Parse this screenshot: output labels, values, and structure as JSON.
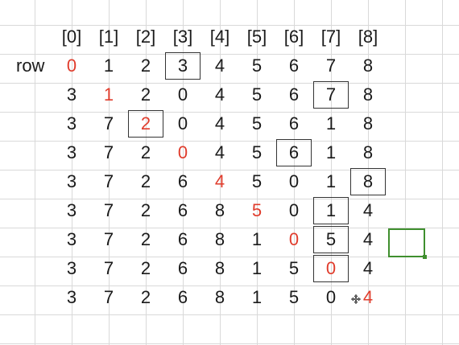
{
  "sheet": {
    "column_headers": [
      "[0]",
      "[1]",
      "[2]",
      "[3]",
      "[4]",
      "[5]",
      "[6]",
      "[7]",
      "[8]"
    ],
    "row_label": "row",
    "rows": [
      [
        "0",
        "1",
        "2",
        "3",
        "4",
        "5",
        "6",
        "7",
        "8"
      ],
      [
        "3",
        "1",
        "2",
        "0",
        "4",
        "5",
        "6",
        "7",
        "8"
      ],
      [
        "3",
        "7",
        "2",
        "0",
        "4",
        "5",
        "6",
        "1",
        "8"
      ],
      [
        "3",
        "7",
        "2",
        "0",
        "4",
        "5",
        "6",
        "1",
        "8"
      ],
      [
        "3",
        "7",
        "2",
        "6",
        "4",
        "5",
        "0",
        "1",
        "8"
      ],
      [
        "3",
        "7",
        "2",
        "6",
        "8",
        "5",
        "0",
        "1",
        "4"
      ],
      [
        "3",
        "7",
        "2",
        "6",
        "8",
        "1",
        "0",
        "5",
        "4"
      ],
      [
        "3",
        "7",
        "2",
        "6",
        "8",
        "1",
        "5",
        "0",
        "4"
      ],
      [
        "3",
        "7",
        "2",
        "6",
        "8",
        "1",
        "5",
        "0",
        "4"
      ]
    ],
    "red_cells": [
      [
        0,
        0
      ],
      [
        1,
        1
      ],
      [
        2,
        2
      ],
      [
        3,
        3
      ],
      [
        4,
        4
      ],
      [
        5,
        5
      ],
      [
        6,
        6
      ],
      [
        7,
        7
      ],
      [
        8,
        8
      ]
    ],
    "boxed_cells": [
      [
        0,
        3
      ],
      [
        1,
        7
      ],
      [
        2,
        2
      ],
      [
        3,
        6
      ],
      [
        4,
        8
      ],
      [
        5,
        7
      ],
      [
        6,
        7
      ],
      [
        7,
        7
      ]
    ],
    "colors": {
      "highlight": "#e03c2c",
      "selection": "#3f8f2e",
      "grid": "#d9d9d9"
    },
    "selected_cell_icon": "cell-selection",
    "cursor_icon": "move-cursor-icon"
  }
}
